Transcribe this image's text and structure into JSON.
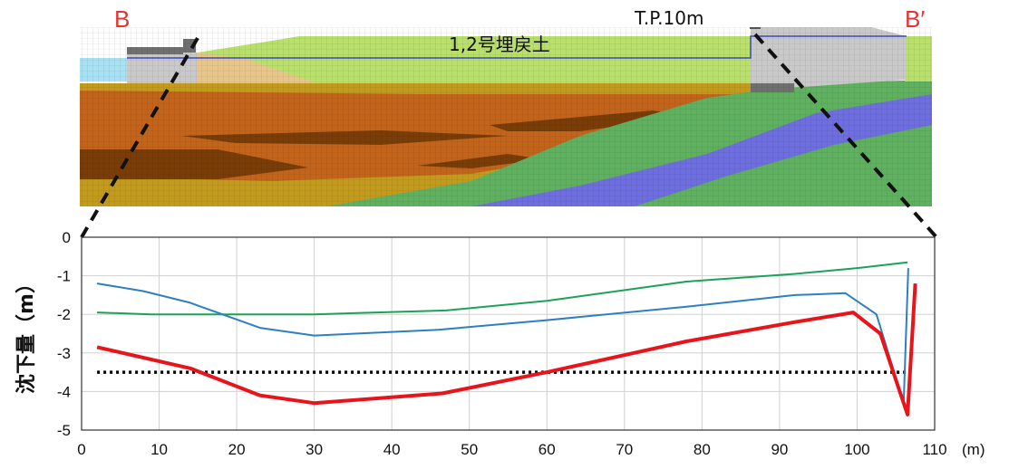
{
  "section": {
    "left_label": "B",
    "right_label": "B′",
    "elevation_label": "T.P.10m",
    "fill_label": "1,2号埋戻土",
    "colors": {
      "backfill": "#b9e06b",
      "backfill_grid": "#93c24a",
      "structure": "#c9c9c9",
      "sand_light": "#e8c68a",
      "clay_orange": "#c3641a",
      "clay_dark": "#7a3d07",
      "ochre": "#c29a1c",
      "green_rock": "#5fb15f",
      "blue_rock": "#6e6ee0",
      "water": "#a7e1f4"
    }
  },
  "chart_data": {
    "type": "line",
    "xlabel": "(m)",
    "ylabel": "沈下量（m）",
    "xlim": [
      0,
      110
    ],
    "ylim": [
      -5,
      0
    ],
    "xticks": [
      "0",
      "10",
      "20",
      "30",
      "40",
      "50",
      "60",
      "70",
      "80",
      "90",
      "100",
      "110"
    ],
    "yticks": [
      "0",
      "-1",
      "-2",
      "-3",
      "-4",
      "-5"
    ],
    "grid": true,
    "series": [
      {
        "color": "#e8141b",
        "width": 4,
        "points": [
          [
            2,
            -2.85
          ],
          [
            14,
            -3.4
          ],
          [
            23,
            -4.1
          ],
          [
            30,
            -4.3
          ],
          [
            46.5,
            -4.05
          ],
          [
            60,
            -3.5
          ],
          [
            78,
            -2.7
          ],
          [
            92,
            -2.2
          ],
          [
            99.5,
            -1.95
          ],
          [
            103,
            -2.5
          ],
          [
            106.5,
            -4.6
          ],
          [
            107.5,
            -1.2
          ]
        ]
      },
      {
        "color": "#2d7fc1",
        "width": 2,
        "points": [
          [
            2,
            -1.2
          ],
          [
            8,
            -1.4
          ],
          [
            14,
            -1.7
          ],
          [
            23,
            -2.35
          ],
          [
            30,
            -2.55
          ],
          [
            46,
            -2.4
          ],
          [
            60,
            -2.15
          ],
          [
            78,
            -1.8
          ],
          [
            92,
            -1.5
          ],
          [
            98.5,
            -1.45
          ],
          [
            102.5,
            -2.0
          ],
          [
            106,
            -4.3
          ],
          [
            106.6,
            -0.8
          ]
        ]
      },
      {
        "color": "#1aa356",
        "width": 2,
        "points": [
          [
            2,
            -1.95
          ],
          [
            9,
            -2.0
          ],
          [
            20,
            -2.0
          ],
          [
            30,
            -2.0
          ],
          [
            47,
            -1.9
          ],
          [
            60,
            -1.65
          ],
          [
            78,
            -1.15
          ],
          [
            92,
            -0.95
          ],
          [
            100,
            -0.8
          ],
          [
            106.5,
            -0.65
          ]
        ]
      }
    ],
    "reference_lines": [
      {
        "y": -3.5,
        "x_range": [
          2,
          107
        ],
        "style": "dotted",
        "color": "#000000"
      }
    ]
  }
}
